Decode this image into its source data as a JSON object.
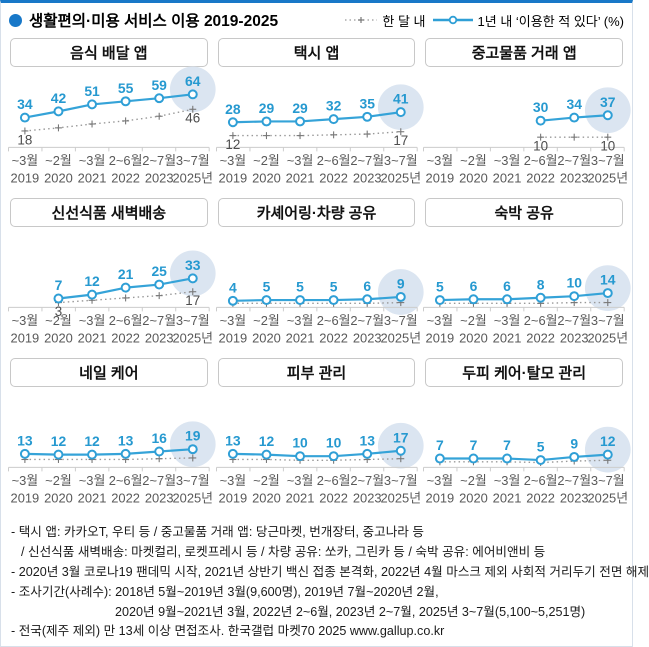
{
  "header": {
    "title": "생활편의·미용 서비스 이용 2019-2025",
    "legend": [
      {
        "label": "한 달 내",
        "style": "dotted"
      },
      {
        "label": "1년 내 ‘이용한 적 있다’ (%)",
        "style": "solid"
      }
    ]
  },
  "colors": {
    "accent_blue": "#1878c8",
    "line_blue": "#35a3d8",
    "label_blue": "#2699d0",
    "marker_stroke": "#2f9fd6",
    "dotted_gray": "#999999",
    "plus_gray": "#777777",
    "bubble": "#dbe5f1",
    "axis": "#cccccc",
    "axis_text": "#595959",
    "monthly_label": "#4d4d4d"
  },
  "chart_data": {
    "type": "line",
    "title": "생활편의·미용 서비스 이용 2019-2025",
    "unit": "%",
    "grid": false,
    "ylim": [
      0,
      70
    ],
    "legend": [
      "한 달 내",
      "1년 내 ‘이용한 적 있다’"
    ],
    "categories_month": [
      "~3월",
      "~2월",
      "~3월",
      "2~6월",
      "2~7월",
      "3~7월"
    ],
    "categories_year": [
      "2019",
      "2020",
      "2021",
      "2022",
      "2023",
      "2025년"
    ],
    "panels": [
      {
        "title": "음식 배달 앱",
        "series": [
          {
            "name": "1년 내",
            "values": [
              34,
              42,
              51,
              55,
              59,
              64
            ]
          },
          {
            "name": "한 달 내",
            "values": [
              18,
              null,
              null,
              null,
              null,
              46
            ],
            "values_est": [
              18,
              22,
              27,
              31,
              37,
              46
            ]
          }
        ]
      },
      {
        "title": "택시 앱",
        "series": [
          {
            "name": "1년 내",
            "values": [
              28,
              29,
              29,
              32,
              35,
              41
            ]
          },
          {
            "name": "한 달 내",
            "values": [
              12,
              null,
              null,
              null,
              null,
              17
            ],
            "values_est": [
              12,
              12,
              12,
              13,
              14,
              17
            ]
          }
        ]
      },
      {
        "title": "중고물품 거래 앱",
        "series": [
          {
            "name": "1년 내",
            "values": [
              null,
              null,
              null,
              30,
              34,
              37
            ]
          },
          {
            "name": "한 달 내",
            "values": [
              null,
              null,
              null,
              10,
              null,
              10
            ],
            "values_est": [
              null,
              null,
              null,
              10,
              10,
              10
            ]
          }
        ]
      },
      {
        "title": "신선식품 새벽배송",
        "series": [
          {
            "name": "1년 내",
            "values": [
              null,
              7,
              12,
              21,
              25,
              33
            ]
          },
          {
            "name": "한 달 내",
            "values": [
              null,
              3,
              null,
              null,
              null,
              17
            ],
            "values_est": [
              null,
              3,
              6,
              9,
              12,
              17
            ]
          }
        ]
      },
      {
        "title": "카셰어링·차량 공유",
        "series": [
          {
            "name": "1년 내",
            "values": [
              4,
              5,
              5,
              5,
              6,
              9
            ]
          },
          {
            "name": "한 달 내",
            "values": [
              null,
              null,
              null,
              null,
              null,
              null
            ],
            "values_est": [
              2,
              2,
              2,
              2,
              2,
              3
            ]
          }
        ]
      },
      {
        "title": "숙박 공유",
        "series": [
          {
            "name": "1년 내",
            "values": [
              5,
              6,
              6,
              8,
              10,
              14
            ]
          },
          {
            "name": "한 달 내",
            "values": [
              null,
              null,
              null,
              null,
              null,
              null
            ],
            "values_est": [
              2,
              2,
              2,
              2,
              3,
              3
            ]
          }
        ]
      },
      {
        "title": "네일 케어",
        "series": [
          {
            "name": "1년 내",
            "values": [
              13,
              12,
              12,
              13,
              16,
              19
            ]
          },
          {
            "name": "한 달 내",
            "values": [
              null,
              null,
              null,
              null,
              null,
              null
            ],
            "values_est": [
              7,
              7,
              7,
              7,
              8,
              9
            ]
          }
        ]
      },
      {
        "title": "피부 관리",
        "series": [
          {
            "name": "1년 내",
            "values": [
              13,
              12,
              10,
              10,
              13,
              17
            ]
          },
          {
            "name": "한 달 내",
            "values": [
              null,
              null,
              null,
              null,
              null,
              null
            ],
            "values_est": [
              7,
              7,
              6,
              6,
              7,
              8
            ]
          }
        ]
      },
      {
        "title": "두피 케어·탈모 관리",
        "series": [
          {
            "name": "1년 내",
            "values": [
              7,
              7,
              7,
              5,
              9,
              12
            ]
          },
          {
            "name": "한 달 내",
            "values": [
              null,
              null,
              null,
              null,
              null,
              null
            ],
            "values_est": [
              4,
              4,
              4,
              3,
              5,
              6
            ]
          }
        ]
      }
    ]
  },
  "footnotes": [
    "- 택시 앱: 카카오T, 우티 등 / 중고물품 거래 앱: 당근마켓, 번개장터, 중고나라 등",
    "/ 신선식품 새벽배송: 마켓컬리, 로켓프레시 등 / 차량 공유: 쏘카, 그린카 등 / 숙박 공유: 에어비앤비 등",
    "- 2020년 3월 코로나19 팬데믹 시작, 2021년 상반기 백신 접종 본격화, 2022년 4월 마스크 제외 사회적 거리두기 전면 해제",
    "- 조사기간(사례수):  2018년 5월~2019년 3월(9,600명), 2019년 7월~2020년 2월,",
    "2020년 9월~2021년 3월, 2022년 2~6월, 2023년 2~7월, 2025년 3~7월(5,100~5,251명)",
    "- 전국(제주 제외) 만 13세 이상 면접조사. 한국갤럽 마켓70 2025 www.gallup.co.kr"
  ]
}
